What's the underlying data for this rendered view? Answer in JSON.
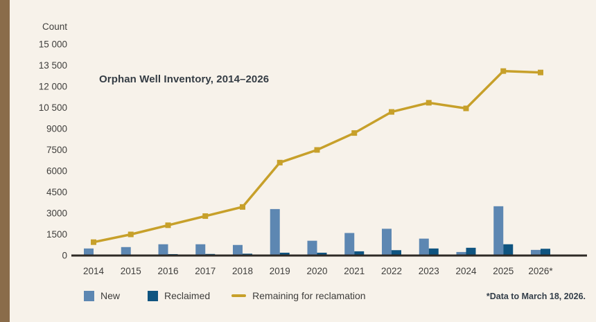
{
  "page": {
    "background": "#f7f2ea",
    "stripe_color": "#8a6c4a",
    "axis_color": "#2e2a25",
    "text_color": "#3f3e3c"
  },
  "chart_data": {
    "type": "bar+line combo",
    "title": "Orphan Well Inventory, 2014–2026",
    "ylabel": "Count",
    "xlabel": "",
    "ylim": [
      0,
      15000
    ],
    "y_tick_interval": 1500,
    "grid": false,
    "legend_position": "bottom",
    "categories": [
      "2014",
      "2015",
      "2016",
      "2017",
      "2018",
      "2019",
      "2020",
      "2021",
      "2022",
      "2023",
      "2024",
      "2025",
      "2026*"
    ],
    "y_ticks": [
      {
        "value": 15000,
        "label": "15 000"
      },
      {
        "value": 13500,
        "label": "13 500"
      },
      {
        "value": 12000,
        "label": "12 000"
      },
      {
        "value": 10500,
        "label": "10 500"
      },
      {
        "value": 9000,
        "label": "9000"
      },
      {
        "value": 7500,
        "label": "7500"
      },
      {
        "value": 6000,
        "label": "6000"
      },
      {
        "value": 4500,
        "label": "4500"
      },
      {
        "value": 3000,
        "label": "3000"
      },
      {
        "value": 1500,
        "label": "1500"
      },
      {
        "value": 0,
        "label": "0"
      }
    ],
    "series": [
      {
        "name": "New",
        "type": "bar",
        "color": "#5d87b2",
        "values": [
          500,
          600,
          800,
          800,
          750,
          3300,
          1050,
          1600,
          1900,
          1200,
          250,
          3500,
          400
        ]
      },
      {
        "name": "Reclaimed",
        "type": "bar",
        "color": "#0f5480",
        "values": [
          30,
          50,
          100,
          110,
          130,
          200,
          200,
          300,
          380,
          500,
          550,
          800,
          480
        ]
      },
      {
        "name": "Remaining for reclamation",
        "type": "line",
        "color": "#c7a02a",
        "values": [
          950,
          1500,
          2150,
          2800,
          3450,
          6600,
          7500,
          8700,
          10200,
          10850,
          10450,
          13100,
          13000
        ]
      }
    ]
  },
  "footnote": "*Data to March 18, 2026."
}
